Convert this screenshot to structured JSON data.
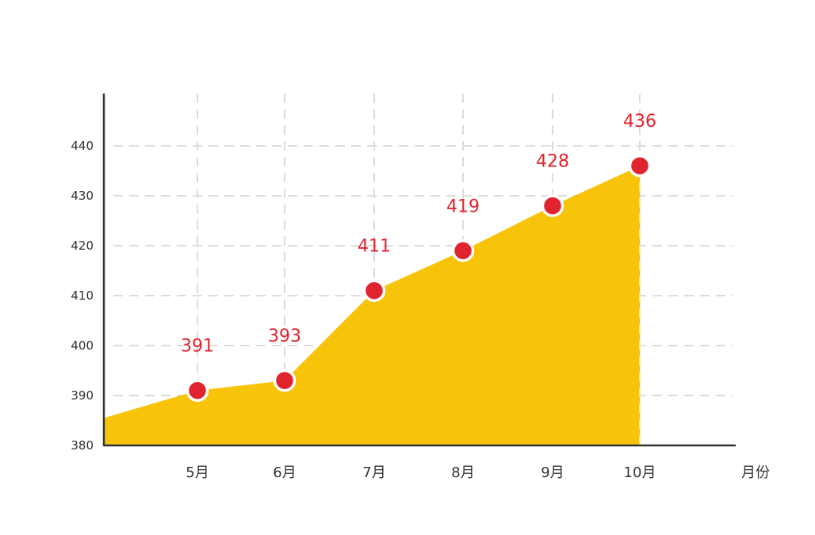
{
  "colors": {
    "area_fill": "#f8c40a",
    "marker_fill": "#e0242f",
    "marker_stroke": "#ffffff",
    "data_label": "#e0242f",
    "grid": "#dcdcdc",
    "axis": "#333333",
    "tick_text": "#333333"
  },
  "chart_data": {
    "type": "area",
    "x_unit_label": "月份",
    "categories": [
      "5月",
      "6月",
      "7月",
      "8月",
      "9月",
      "10月"
    ],
    "values": [
      391,
      393,
      411,
      419,
      428,
      436
    ],
    "data_labels": [
      "391",
      "393",
      "411",
      "419",
      "428",
      "436"
    ],
    "start_value": 385.5,
    "y_ticks": [
      "380",
      "390",
      "400",
      "410",
      "420",
      "430",
      "440"
    ],
    "ylim": [
      380,
      450
    ],
    "grid": true,
    "grid_style": "dashed",
    "legend": "none",
    "markers": "circle"
  }
}
